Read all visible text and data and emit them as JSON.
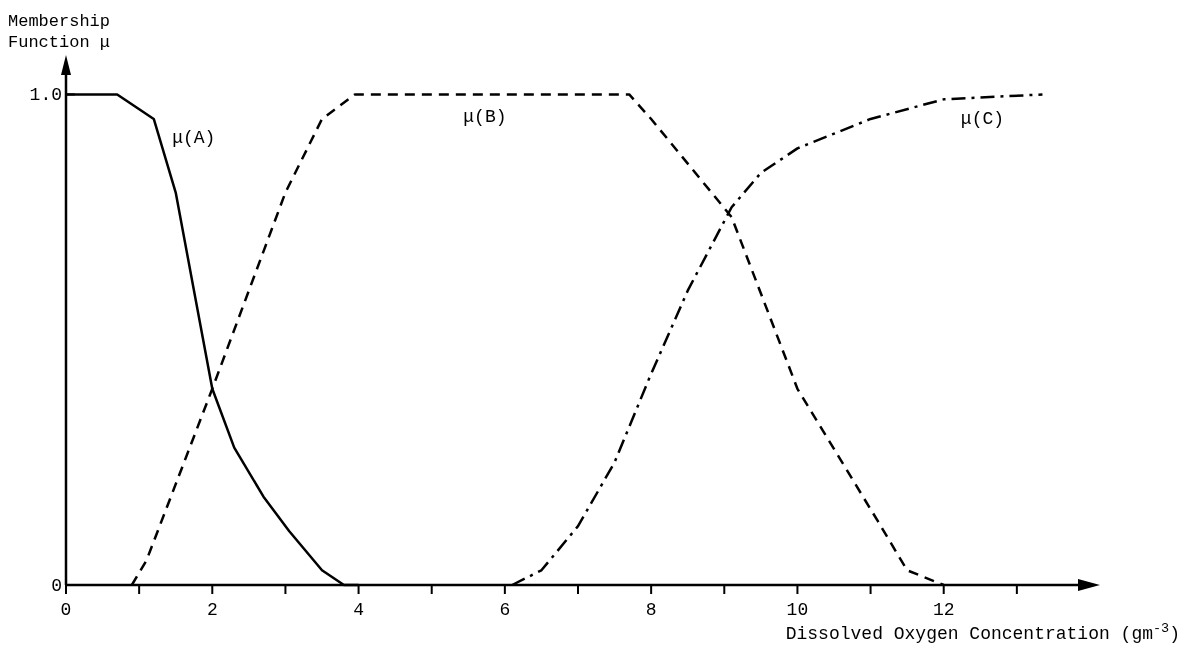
{
  "chart_data": {
    "type": "line",
    "xlabel": "Dissolved Oxygen Concentration (gm$^{-3}$)",
    "ylabel": "Membership\nFunction μ",
    "xlim": [
      0,
      14
    ],
    "xticks": [
      0,
      {
        "value": 1,
        "label": null
      },
      2,
      {
        "value": 3,
        "label": null
      },
      4,
      {
        "value": 5,
        "label": null
      },
      6,
      {
        "value": 7,
        "label": null
      },
      8,
      {
        "value": 9,
        "label": null
      },
      10,
      {
        "value": 11,
        "label": null
      },
      12,
      {
        "value": 13,
        "label": null
      }
    ],
    "ylim": [
      0,
      1.06
    ],
    "yticks": [
      0,
      {
        "value": 1,
        "label": "1.0"
      }
    ],
    "grid": false,
    "marker": "none",
    "series": [
      {
        "name": "μ(A)",
        "color": "#000000",
        "line_style": "solid",
        "x": [
          0,
          0.7,
          1.2,
          1.5,
          1.75,
          2,
          2.3,
          2.7,
          3.05,
          3.5,
          3.8,
          4
        ],
        "values": [
          1,
          1,
          0.95,
          0.8,
          0.6,
          0.4,
          0.28,
          0.18,
          0.11,
          0.03,
          0,
          0
        ]
      },
      {
        "name": "μ(B)",
        "color": "#000000",
        "line_style": "dashed",
        "x": [
          0.9,
          1.1,
          2,
          3,
          3.5,
          3.95,
          7.7,
          8,
          9.1,
          10,
          11.1,
          11.5,
          12
        ],
        "values": [
          0,
          0.05,
          0.4,
          0.8,
          0.95,
          1,
          1,
          0.95,
          0.75,
          0.4,
          0.13,
          0.03,
          0
        ]
      },
      {
        "name": "μ(C)",
        "color": "#000000",
        "line_style": "dashdot",
        "x": [
          6.1,
          6.5,
          7,
          7.5,
          7.97,
          8.5,
          9.1,
          9.5,
          10,
          11,
          12,
          13.35
        ],
        "values": [
          0,
          0.03,
          0.12,
          0.25,
          0.42,
          0.6,
          0.77,
          0.84,
          0.89,
          0.95,
          0.99,
          1
        ]
      }
    ]
  }
}
